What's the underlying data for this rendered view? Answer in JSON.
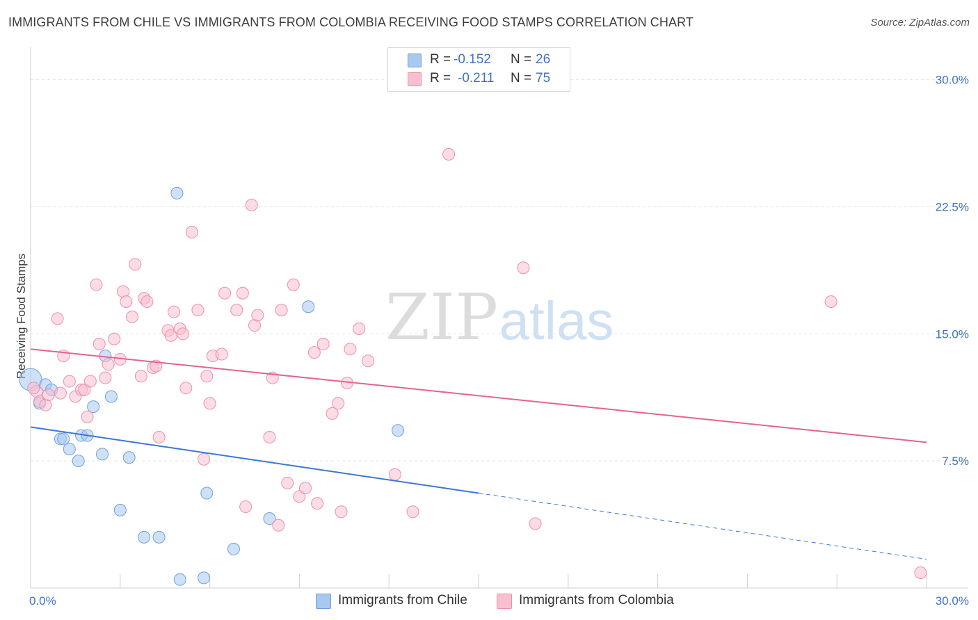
{
  "title": "IMMIGRANTS FROM CHILE VS IMMIGRANTS FROM COLOMBIA RECEIVING FOOD STAMPS CORRELATION CHART",
  "source": "Source: ZipAtlas.com",
  "watermark": {
    "zip": "ZIP",
    "atlas": "atlas"
  },
  "legend": {
    "r_label": "R =",
    "n_label": "N =",
    "rows": [
      {
        "name": "Immigrants from Chile",
        "r": "-0.152",
        "n": "26",
        "color": "#a8c8f0",
        "stroke": "#6f9fdc"
      },
      {
        "name": "Immigrants from Colombia",
        "r": "-0.211",
        "n": "75",
        "color": "#f9bfd0",
        "stroke": "#ec8fae"
      }
    ]
  },
  "chart_data": {
    "type": "scatter",
    "title": "IMMIGRANTS FROM CHILE VS IMMIGRANTS FROM COLOMBIA RECEIVING FOOD STAMPS CORRELATION CHART",
    "xlabel": "",
    "ylabel": "Receiving Food Stamps",
    "xlim": [
      0,
      30
    ],
    "ylim": [
      0,
      31.5
    ],
    "x_tick_labels": [
      {
        "value": 0,
        "label": "0.0%"
      },
      {
        "value": 30,
        "label": "30.0%"
      }
    ],
    "y_tick_labels": [
      {
        "value": 7.5,
        "label": "7.5%"
      },
      {
        "value": 15,
        "label": "15.0%"
      },
      {
        "value": 22.5,
        "label": "22.5%"
      },
      {
        "value": 30,
        "label": "30.0%"
      }
    ],
    "grid": true,
    "series": [
      {
        "name": "Immigrants from Chile",
        "color": "#a8c8f0",
        "stroke": "#6f9fdc",
        "line_color": "#3a78d4",
        "trend": {
          "x0": 0,
          "y0": 9.5,
          "x1": 15,
          "y1": 5.6,
          "x_dash_end": 30,
          "y_dash_end": 1.7
        },
        "points": [
          {
            "x": 0.0,
            "y": 12.3,
            "big": true
          },
          {
            "x": 0.3,
            "y": 10.9
          },
          {
            "x": 0.5,
            "y": 12.0
          },
          {
            "x": 0.7,
            "y": 11.7
          },
          {
            "x": 1.0,
            "y": 8.8
          },
          {
            "x": 1.1,
            "y": 8.8
          },
          {
            "x": 1.3,
            "y": 8.2
          },
          {
            "x": 1.6,
            "y": 7.5
          },
          {
            "x": 1.7,
            "y": 9.0
          },
          {
            "x": 1.9,
            "y": 9.0
          },
          {
            "x": 2.1,
            "y": 10.7
          },
          {
            "x": 2.4,
            "y": 7.9
          },
          {
            "x": 2.5,
            "y": 13.7
          },
          {
            "x": 2.7,
            "y": 11.3
          },
          {
            "x": 3.0,
            "y": 4.6
          },
          {
            "x": 3.3,
            "y": 7.7
          },
          {
            "x": 3.8,
            "y": 3.0
          },
          {
            "x": 4.3,
            "y": 3.0
          },
          {
            "x": 4.9,
            "y": 23.3
          },
          {
            "x": 5.0,
            "y": 0.5
          },
          {
            "x": 5.8,
            "y": 0.6
          },
          {
            "x": 5.9,
            "y": 5.6
          },
          {
            "x": 6.8,
            "y": 2.3
          },
          {
            "x": 8.0,
            "y": 4.1
          },
          {
            "x": 9.3,
            "y": 16.6
          },
          {
            "x": 12.3,
            "y": 9.3
          }
        ]
      },
      {
        "name": "Immigrants from Colombia",
        "color": "#f9bfd0",
        "stroke": "#ec8fae",
        "line_color": "#e4648e",
        "trend": {
          "x0": 0,
          "y0": 14.1,
          "x1": 30,
          "y1": 8.6
        },
        "points": [
          {
            "x": 0.2,
            "y": 11.6
          },
          {
            "x": 0.3,
            "y": 11.0
          },
          {
            "x": 0.5,
            "y": 10.8
          },
          {
            "x": 0.6,
            "y": 11.4
          },
          {
            "x": 0.9,
            "y": 15.9
          },
          {
            "x": 1.0,
            "y": 11.5
          },
          {
            "x": 1.1,
            "y": 13.7
          },
          {
            "x": 1.3,
            "y": 12.2
          },
          {
            "x": 1.5,
            "y": 11.3
          },
          {
            "x": 1.7,
            "y": 11.7
          },
          {
            "x": 1.8,
            "y": 11.7
          },
          {
            "x": 1.9,
            "y": 10.1
          },
          {
            "x": 2.0,
            "y": 12.2
          },
          {
            "x": 2.2,
            "y": 17.9
          },
          {
            "x": 2.3,
            "y": 14.4
          },
          {
            "x": 2.5,
            "y": 12.4
          },
          {
            "x": 2.6,
            "y": 13.2
          },
          {
            "x": 2.8,
            "y": 14.7
          },
          {
            "x": 3.0,
            "y": 13.5
          },
          {
            "x": 3.1,
            "y": 17.5
          },
          {
            "x": 3.2,
            "y": 16.9
          },
          {
            "x": 3.4,
            "y": 16.0
          },
          {
            "x": 3.5,
            "y": 19.1
          },
          {
            "x": 3.7,
            "y": 12.5
          },
          {
            "x": 3.8,
            "y": 17.1
          },
          {
            "x": 3.9,
            "y": 16.9
          },
          {
            "x": 4.1,
            "y": 13.0
          },
          {
            "x": 4.2,
            "y": 13.1
          },
          {
            "x": 4.3,
            "y": 8.9
          },
          {
            "x": 4.6,
            "y": 15.2
          },
          {
            "x": 4.7,
            "y": 14.9
          },
          {
            "x": 4.8,
            "y": 16.3
          },
          {
            "x": 5.0,
            "y": 15.3
          },
          {
            "x": 5.1,
            "y": 15.0
          },
          {
            "x": 5.2,
            "y": 11.8
          },
          {
            "x": 5.4,
            "y": 21.0
          },
          {
            "x": 5.6,
            "y": 16.4
          },
          {
            "x": 5.8,
            "y": 7.6
          },
          {
            "x": 5.9,
            "y": 12.5
          },
          {
            "x": 6.0,
            "y": 10.9
          },
          {
            "x": 6.1,
            "y": 13.7
          },
          {
            "x": 6.4,
            "y": 13.8
          },
          {
            "x": 6.5,
            "y": 17.4
          },
          {
            "x": 6.9,
            "y": 16.4
          },
          {
            "x": 7.1,
            "y": 17.4
          },
          {
            "x": 7.2,
            "y": 4.8
          },
          {
            "x": 7.4,
            "y": 22.6
          },
          {
            "x": 7.5,
            "y": 15.5
          },
          {
            "x": 7.6,
            "y": 16.1
          },
          {
            "x": 8.0,
            "y": 8.9
          },
          {
            "x": 8.1,
            "y": 12.4
          },
          {
            "x": 8.3,
            "y": 3.7
          },
          {
            "x": 8.4,
            "y": 16.4
          },
          {
            "x": 8.6,
            "y": 6.2
          },
          {
            "x": 8.8,
            "y": 17.9
          },
          {
            "x": 9.0,
            "y": 5.4
          },
          {
            "x": 9.2,
            "y": 5.9
          },
          {
            "x": 9.5,
            "y": 13.9
          },
          {
            "x": 9.6,
            "y": 5.0
          },
          {
            "x": 9.8,
            "y": 14.4
          },
          {
            "x": 10.1,
            "y": 10.3
          },
          {
            "x": 10.3,
            "y": 10.9
          },
          {
            "x": 10.4,
            "y": 4.5
          },
          {
            "x": 10.6,
            "y": 12.1
          },
          {
            "x": 10.7,
            "y": 14.1
          },
          {
            "x": 11.0,
            "y": 15.3
          },
          {
            "x": 11.3,
            "y": 13.4
          },
          {
            "x": 12.2,
            "y": 6.7
          },
          {
            "x": 12.8,
            "y": 4.5
          },
          {
            "x": 14.0,
            "y": 25.6
          },
          {
            "x": 16.5,
            "y": 18.9
          },
          {
            "x": 16.9,
            "y": 3.8
          },
          {
            "x": 26.8,
            "y": 16.9
          },
          {
            "x": 29.8,
            "y": 0.9
          },
          {
            "x": 0.1,
            "y": 11.8
          }
        ]
      }
    ]
  }
}
